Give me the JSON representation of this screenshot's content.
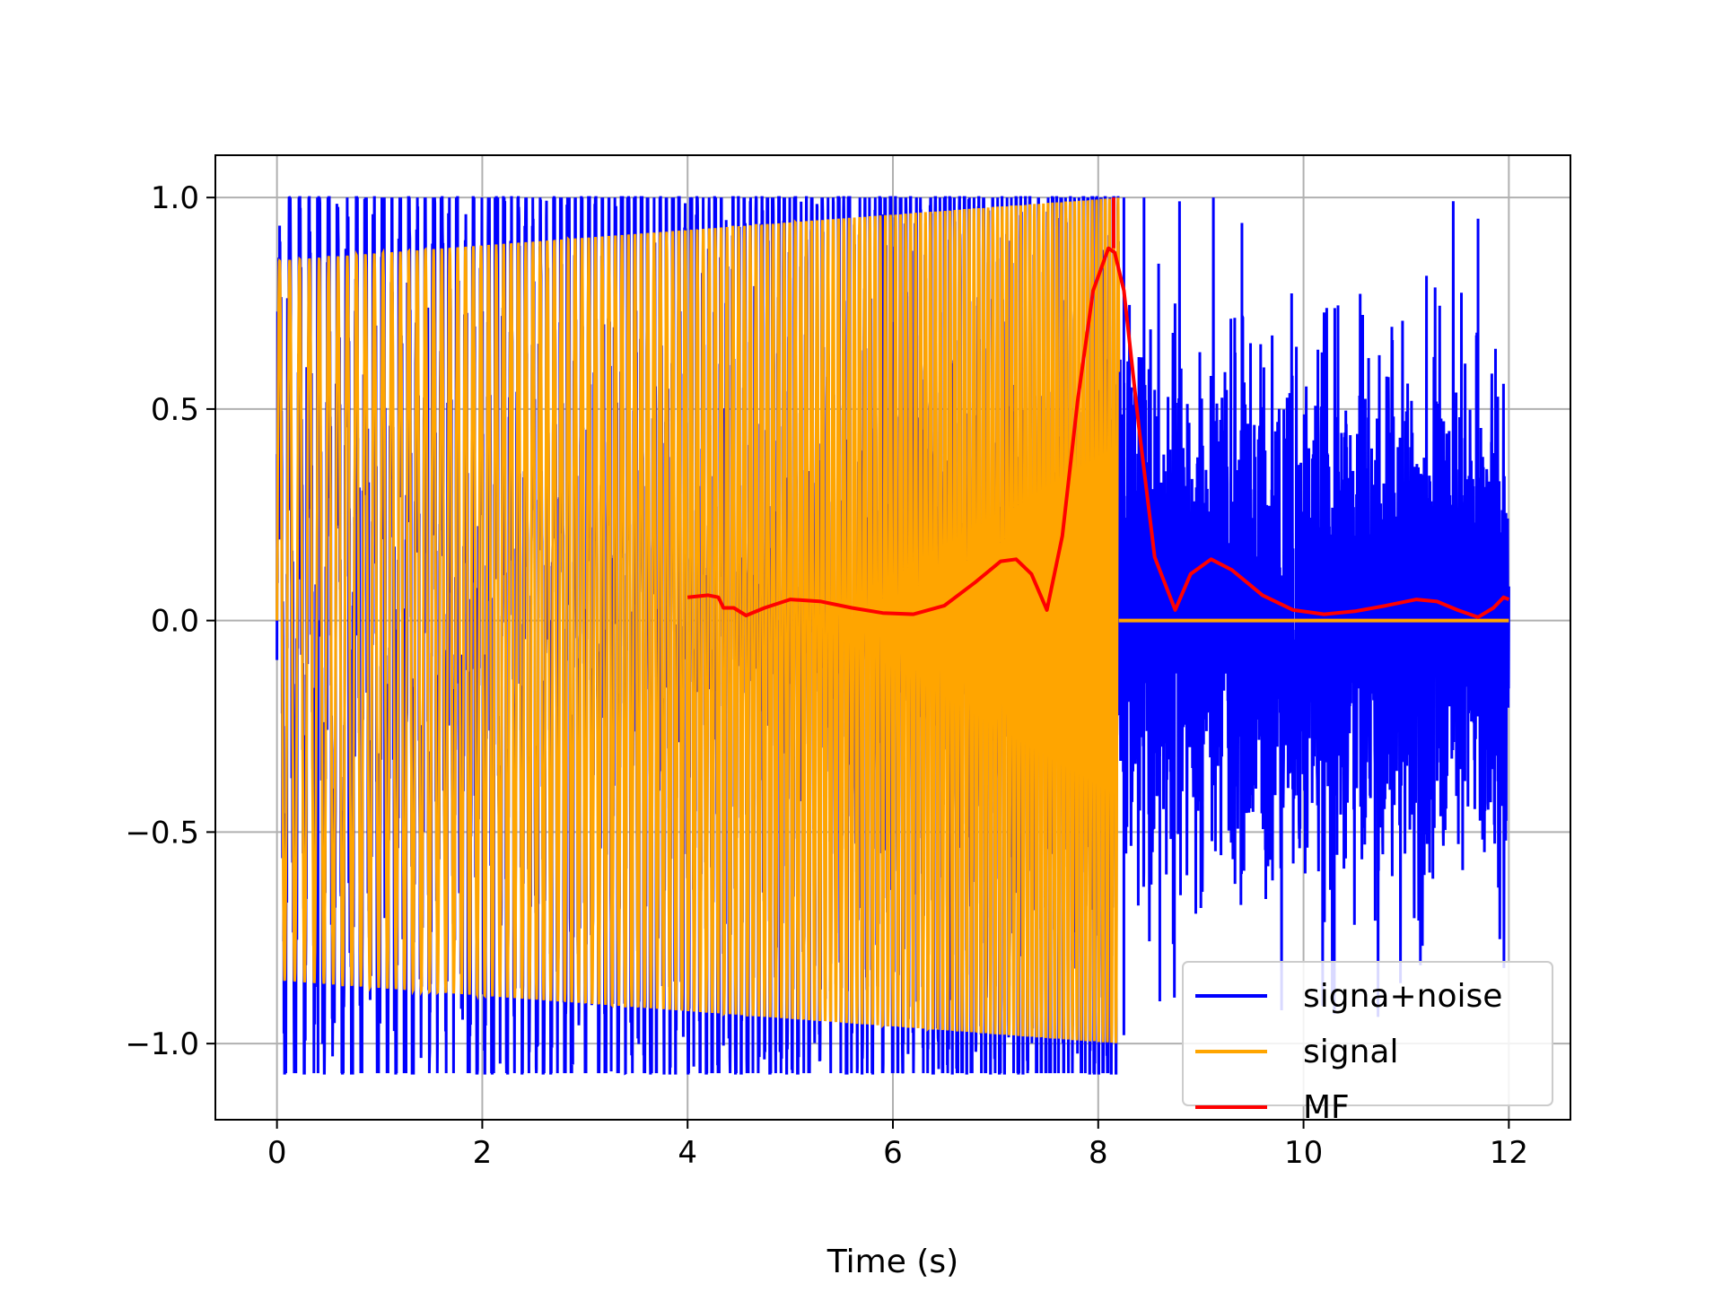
{
  "chart_data": {
    "type": "line",
    "title": "",
    "xlabel": "Time (s)",
    "ylabel": "",
    "xlim": [
      -0.6,
      12.6
    ],
    "ylim": [
      -1.18,
      1.1
    ],
    "xticks": [
      0,
      2,
      4,
      6,
      8,
      10,
      12
    ],
    "xtick_labels": [
      "0",
      "2",
      "4",
      "6",
      "8",
      "10",
      "12"
    ],
    "yticks": [
      -1.0,
      -0.5,
      0.0,
      0.5,
      1.0
    ],
    "ytick_labels": [
      "−1.0",
      "−0.5",
      "0.0",
      "0.5",
      "1.0"
    ],
    "grid": true,
    "legend_position": "bottom-right",
    "series": [
      {
        "name": "signa+noise",
        "color": "#0000ff",
        "description_points": {
          "x_range": [
            0,
            12
          ],
          "chirp_end": 8.2,
          "noise_amplitude": 0.3,
          "peaks": [
            [
              0.4,
              -1.07
            ],
            [
              4.9,
              -1.02
            ],
            [
              5.9,
              0.96
            ],
            [
              8.25,
              1.0
            ],
            [
              8.25,
              -0.98
            ],
            [
              9.4,
              0.94
            ],
            [
              11.7,
              0.95
            ],
            [
              8.6,
              -0.9
            ],
            [
              10.3,
              -0.93
            ]
          ]
        }
      },
      {
        "name": "signal",
        "color": "#ffa500",
        "envelope": {
          "x": [
            0,
            8.2
          ],
          "amplitude_start": 0.85,
          "amplitude_end": 1.0
        },
        "zero_after": [
          8.2,
          12
        ]
      },
      {
        "name": "MF",
        "color": "#ff0000",
        "x": [
          4.0,
          4.2,
          4.3,
          4.35,
          4.45,
          4.57,
          4.75,
          5.0,
          5.3,
          5.6,
          5.9,
          6.2,
          6.5,
          6.8,
          7.05,
          7.2,
          7.35,
          7.5,
          7.65,
          7.8,
          7.95,
          8.1,
          8.16,
          8.25,
          8.4,
          8.55,
          8.75,
          8.9,
          9.1,
          9.3,
          9.6,
          9.9,
          10.2,
          10.5,
          10.8,
          11.1,
          11.3,
          11.5,
          11.7,
          11.85,
          11.95,
          12.0
        ],
        "y": [
          0.055,
          0.06,
          0.055,
          0.03,
          0.03,
          0.012,
          0.03,
          0.05,
          0.045,
          0.03,
          0.018,
          0.015,
          0.035,
          0.09,
          0.14,
          0.145,
          0.11,
          0.025,
          0.2,
          0.52,
          0.78,
          0.88,
          0.87,
          0.78,
          0.45,
          0.15,
          0.025,
          0.11,
          0.145,
          0.12,
          0.06,
          0.025,
          0.015,
          0.022,
          0.035,
          0.05,
          0.045,
          0.025,
          0.008,
          0.03,
          0.055,
          0.05
        ]
      }
    ]
  }
}
